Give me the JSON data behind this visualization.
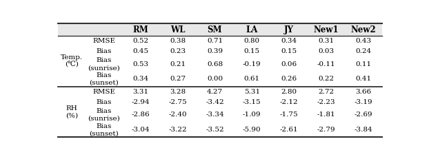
{
  "col_headers": [
    "RM",
    "WL",
    "SM",
    "LA",
    "JY",
    "New1",
    "New2"
  ],
  "row_groups": [
    {
      "group_label": "Temp.\n(℃)",
      "rows": [
        {
          "label": "RMSE",
          "label2": null,
          "values": [
            "0.52",
            "0.38",
            "0.71",
            "0.80",
            "0.34",
            "0.31",
            "0.43"
          ]
        },
        {
          "label": "Bias",
          "label2": null,
          "values": [
            "0.45",
            "0.23",
            "0.39",
            "0.15",
            "0.15",
            "0.03",
            "0.24"
          ]
        },
        {
          "label": "Bias",
          "label2": "(sunrise)",
          "values": [
            "0.53",
            "0.21",
            "0.68",
            "-0.19",
            "0.06",
            "-0.11",
            "0.11"
          ]
        },
        {
          "label": "Bias",
          "label2": "(sunset)",
          "values": [
            "0.34",
            "0.27",
            "0.00",
            "0.61",
            "0.26",
            "0.22",
            "0.41"
          ]
        }
      ]
    },
    {
      "group_label": "RH\n(%)",
      "rows": [
        {
          "label": "RMSE",
          "label2": null,
          "values": [
            "3.31",
            "3.28",
            "4.27",
            "5.31",
            "2.80",
            "2.72",
            "3.66"
          ]
        },
        {
          "label": "Bias",
          "label2": null,
          "values": [
            "-2.94",
            "-2.75",
            "-3.42",
            "-3.15",
            "-2.12",
            "-2.23",
            "-3.19"
          ]
        },
        {
          "label": "Bias",
          "label2": "(sunrise)",
          "values": [
            "-2.86",
            "-2.40",
            "-3.34",
            "-1.09",
            "-1.75",
            "-1.81",
            "-2.69"
          ]
        },
        {
          "label": "Bias",
          "label2": "(sunset)",
          "values": [
            "-3.04",
            "-3.22",
            "-3.52",
            "-5.90",
            "-2.61",
            "-2.79",
            "-3.84"
          ]
        }
      ]
    }
  ],
  "font_size": 7.5,
  "header_font_size": 8.5,
  "background_color": "#ffffff",
  "header_bg_color": "#e8e8e8",
  "line_color": "#555555",
  "text_color": "#000000"
}
